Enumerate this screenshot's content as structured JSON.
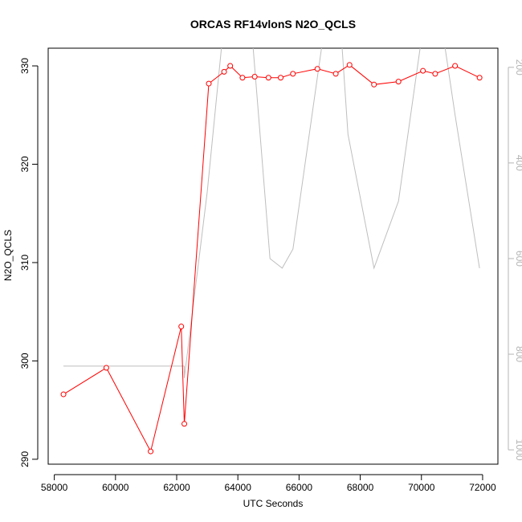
{
  "chart_data": {
    "type": "line",
    "title": "ORCAS RF14vlonS N2O_QCLS",
    "xlabel": "UTC Seconds",
    "ylabel": "N2O_QCLS",
    "xlim": [
      57800,
      72500
    ],
    "ylim": [
      289.5,
      331.8
    ],
    "x_ticks": [
      "58000",
      "60000",
      "62000",
      "64000",
      "66000",
      "68000",
      "70000",
      "72000"
    ],
    "y_ticks": [
      "290",
      "300",
      "310",
      "320",
      "330"
    ],
    "y2_ticks": [
      "200",
      "400",
      "600",
      "800",
      "1000"
    ],
    "y2_range_top_bottom": [
      160,
      1030
    ],
    "series": [
      {
        "color": "#ff0000",
        "style": "line-with-open-circles",
        "x": [
          58300,
          59700,
          61150,
          62150,
          62250,
          63050,
          63550,
          63750,
          64150,
          64550,
          65000,
          65400,
          65800,
          66600,
          67200,
          67650,
          68450,
          69250,
          70050,
          70450,
          71100,
          71900
        ],
        "y": [
          296.6,
          299.3,
          290.8,
          303.5,
          293.6,
          328.2,
          329.4,
          330.0,
          328.8,
          328.9,
          328.8,
          328.8,
          329.2,
          329.7,
          329.2,
          330.1,
          328.1,
          328.4,
          329.5,
          329.2,
          330.0,
          328.8
        ]
      },
      {
        "color": "#bebebe",
        "style": "line",
        "axis": "right",
        "x": [
          58300,
          62250,
          62250,
          63000,
          63600,
          64300,
          64750,
          65050,
          65450,
          65800,
          66800,
          67250,
          67600,
          68450,
          69250,
          70000,
          70450,
          71100,
          71900
        ],
        "y": [
          825,
          825,
          850,
          460,
          70,
          0,
          360,
          600,
          620,
          580,
          130,
          10,
          340,
          620,
          480,
          140,
          20,
          300,
          620
        ]
      }
    ]
  }
}
